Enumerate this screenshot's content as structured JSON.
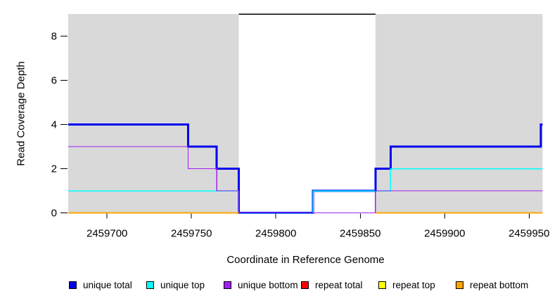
{
  "chart_data": {
    "type": "line",
    "subtype": "step-coverage",
    "title": "",
    "xlabel": "Coordinate in Reference Genome",
    "ylabel": "Read Coverage Depth",
    "xlim": [
      2459677,
      2459958
    ],
    "ylim": [
      0,
      9
    ],
    "x_ticks": [
      2459700,
      2459750,
      2459800,
      2459850,
      2459900,
      2459950
    ],
    "y_ticks": [
      0,
      2,
      4,
      6,
      8
    ],
    "grid": false,
    "legend_position": "bottom",
    "panel_color": "#d9d9d9",
    "unique_regions": [
      [
        2459677,
        2459778
      ],
      [
        2459859,
        2459958
      ]
    ],
    "repeat_region": [
      2459778,
      2459859
    ],
    "offscale_marker": {
      "from": 2459778,
      "to": 2459859,
      "depth": 9,
      "color": "#000000"
    },
    "series": [
      {
        "name": "unique total",
        "color": "#0000EE",
        "lwd": 3,
        "levels": [
          {
            "from": 2459677,
            "to": 2459748,
            "depth": 4
          },
          {
            "from": 2459748,
            "to": 2459765,
            "depth": 3
          },
          {
            "from": 2459765,
            "to": 2459778,
            "depth": 2
          },
          {
            "from": 2459778,
            "to": 2459822,
            "depth": 0
          },
          {
            "from": 2459822,
            "to": 2459859,
            "depth": 1
          },
          {
            "from": 2459859,
            "to": 2459868,
            "depth": 2
          },
          {
            "from": 2459868,
            "to": 2459957,
            "depth": 3
          },
          {
            "from": 2459957,
            "to": 2459958,
            "depth": 4
          }
        ]
      },
      {
        "name": "unique top",
        "color": "#00FFFF",
        "lwd": 1.5,
        "levels": [
          {
            "from": 2459677,
            "to": 2459778,
            "depth": 1
          },
          {
            "from": 2459778,
            "to": 2459822,
            "depth": 0
          },
          {
            "from": 2459822,
            "to": 2459868,
            "depth": 1
          },
          {
            "from": 2459868,
            "to": 2459958,
            "depth": 2
          }
        ]
      },
      {
        "name": "unique bottom",
        "color": "#A020F0",
        "lwd": 1.3,
        "levels": [
          {
            "from": 2459677,
            "to": 2459748,
            "depth": 3
          },
          {
            "from": 2459748,
            "to": 2459765,
            "depth": 2
          },
          {
            "from": 2459765,
            "to": 2459778,
            "depth": 1
          },
          {
            "from": 2459778,
            "to": 2459859,
            "depth": 0
          },
          {
            "from": 2459859,
            "to": 2459958,
            "depth": 1
          }
        ]
      },
      {
        "name": "repeat total",
        "color": "#FF0000",
        "lwd": 1.3,
        "levels": [
          {
            "from": 2459677,
            "to": 2459778,
            "depth": 0
          },
          {
            "from": 2459859,
            "to": 2459958,
            "depth": 0
          }
        ]
      },
      {
        "name": "repeat top",
        "color": "#FFFF00",
        "lwd": 1.3,
        "levels": [
          {
            "from": 2459677,
            "to": 2459778,
            "depth": 0
          },
          {
            "from": 2459859,
            "to": 2459958,
            "depth": 0
          }
        ]
      },
      {
        "name": "repeat bottom",
        "color": "#FFA500",
        "lwd": 2,
        "levels": [
          {
            "from": 2459677,
            "to": 2459778,
            "depth": 0
          },
          {
            "from": 2459859,
            "to": 2459958,
            "depth": 0
          }
        ]
      }
    ]
  }
}
